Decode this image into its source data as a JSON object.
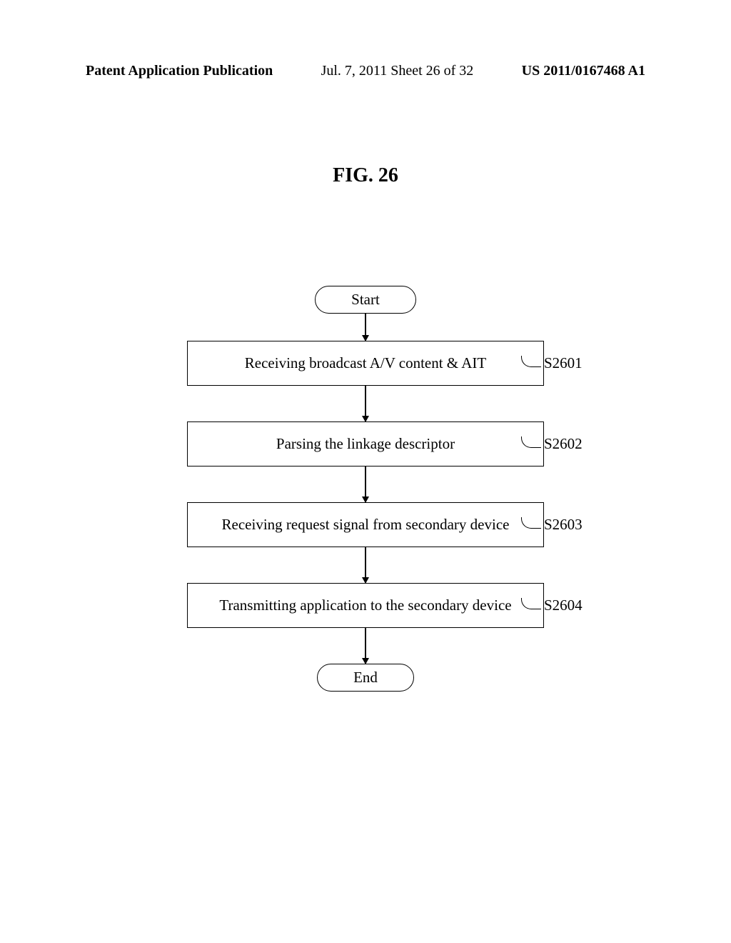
{
  "header": {
    "left": "Patent Application Publication",
    "center": "Jul. 7, 2011  Sheet 26 of 32",
    "right": "US 2011/0167468 A1",
    "fontsize": 20,
    "fontweight_left": "bold",
    "fontweight_right": "bold"
  },
  "figure": {
    "title": "FIG. 26",
    "title_fontsize": 28,
    "background_color": "#ffffff",
    "line_color": "#000000",
    "text_color": "#000000",
    "body_fontsize": 21,
    "label_fontsize": 21,
    "terminal_fontsize": 21,
    "start": "Start",
    "end": "End",
    "arrow_heights": [
      38,
      50,
      50,
      50,
      50
    ],
    "steps": [
      {
        "text": "Receiving broadcast A/V content & AIT",
        "label": "S2601"
      },
      {
        "text": "Parsing the linkage descriptor",
        "label": "S2602"
      },
      {
        "text": "Receiving request signal from secondary device",
        "label": "S2603"
      },
      {
        "text": "Transmitting application to the secondary device",
        "label": "S2604"
      }
    ]
  }
}
